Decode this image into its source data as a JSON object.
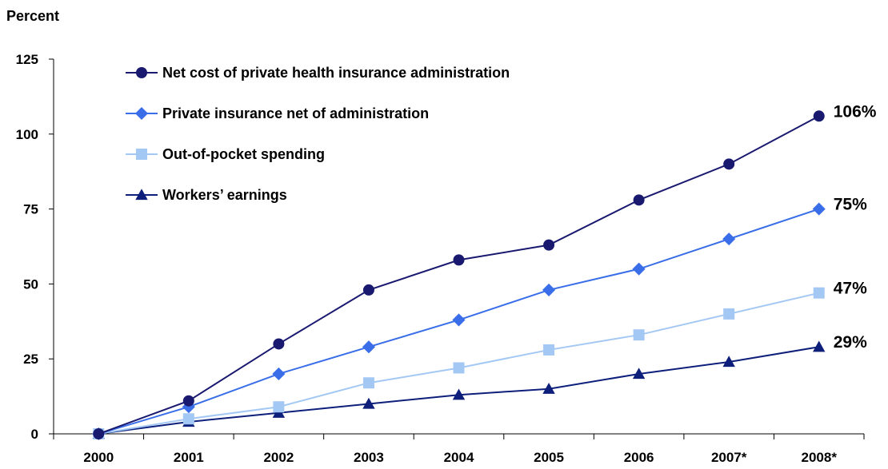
{
  "chart_data": {
    "type": "line",
    "ylabel": "Percent",
    "xlabel": "",
    "title": "",
    "categories": [
      "2000",
      "2001",
      "2002",
      "2003",
      "2004",
      "2005",
      "2006",
      "2007*",
      "2008*"
    ],
    "ylim": [
      0,
      125
    ],
    "yticks": [
      0,
      25,
      50,
      75,
      100,
      125
    ],
    "grid": false,
    "legend_position": "top-left",
    "series": [
      {
        "name": "Net cost of private health insurance administration",
        "values": [
          0,
          11,
          30,
          48,
          58,
          63,
          78,
          90,
          106
        ],
        "marker": "circle",
        "color": "#191970",
        "end_label": "106%"
      },
      {
        "name": "Private insurance net of administration",
        "values": [
          0,
          9,
          20,
          29,
          38,
          48,
          55,
          65,
          75
        ],
        "marker": "diamond",
        "color": "#3a6ee8",
        "end_label": "75%"
      },
      {
        "name": "Out-of-pocket spending",
        "values": [
          0,
          5,
          9,
          17,
          22,
          28,
          33,
          40,
          47
        ],
        "marker": "square",
        "color": "#a4c8f4",
        "end_label": "47%"
      },
      {
        "name": "Workers’ earnings",
        "values": [
          0,
          4,
          7,
          10,
          13,
          15,
          20,
          24,
          29
        ],
        "marker": "triangle",
        "color": "#0d1f7a",
        "end_label": "29%"
      }
    ]
  }
}
